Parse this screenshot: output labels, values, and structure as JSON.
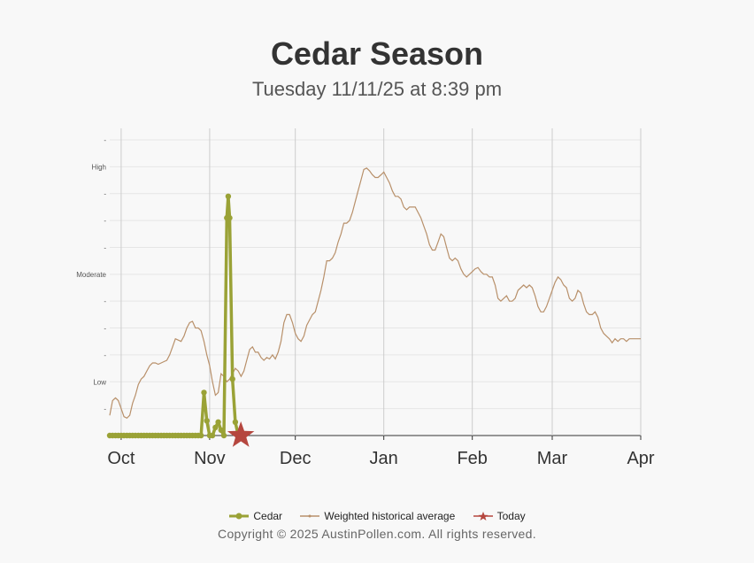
{
  "chart_data": {
    "type": "line",
    "title": "Cedar Season",
    "subtitle": "Tuesday 11/11/25 at 8:39 pm",
    "x_axis": {
      "type": "date",
      "range": [
        "2025-09-27",
        "2026-04-01"
      ],
      "tick_labels": [
        {
          "label": "Oct",
          "date": "2025-10-01"
        },
        {
          "label": "Nov",
          "date": "2025-11-01"
        },
        {
          "label": "Dec",
          "date": "2025-12-01"
        },
        {
          "label": "Jan",
          "date": "2026-01-01"
        },
        {
          "label": "Feb",
          "date": "2026-02-01"
        },
        {
          "label": "Mar",
          "date": "2026-03-01"
        },
        {
          "label": "Apr",
          "date": "2026-04-01"
        }
      ]
    },
    "y_axis": {
      "range": [
        0,
        11
      ],
      "tick_labels": [
        {
          "value": 1,
          "label": "-"
        },
        {
          "value": 2,
          "label": "Low"
        },
        {
          "value": 3,
          "label": "-"
        },
        {
          "value": 4,
          "label": "-"
        },
        {
          "value": 5,
          "label": "-"
        },
        {
          "value": 6,
          "label": "Moderate"
        },
        {
          "value": 7,
          "label": "-"
        },
        {
          "value": 8,
          "label": "-"
        },
        {
          "value": 9,
          "label": "-"
        },
        {
          "value": 10,
          "label": "High"
        },
        {
          "value": 11,
          "label": "-"
        }
      ]
    },
    "grid": true,
    "legend_position": "bottom",
    "series": [
      {
        "name": "Cedar",
        "color": "#9aa236",
        "points": [
          [
            "2025-09-27",
            0
          ],
          [
            "2025-10-05",
            0
          ],
          [
            "2025-10-15",
            0
          ],
          [
            "2025-10-25",
            0
          ],
          [
            "2025-10-29",
            0
          ],
          [
            "2025-10-30",
            1.6
          ],
          [
            "2025-10-31",
            0.55
          ],
          [
            "2025-11-01",
            0
          ],
          [
            "2025-11-02",
            0
          ],
          [
            "2025-11-03",
            0.3
          ],
          [
            "2025-11-04",
            0.5
          ],
          [
            "2025-11-05",
            0.2
          ],
          [
            "2025-11-06",
            0
          ],
          [
            "2025-11-07",
            8.1
          ],
          [
            "2025-11-07T12:00",
            8.9
          ],
          [
            "2025-11-08",
            8.1
          ],
          [
            "2025-11-09",
            2.1
          ],
          [
            "2025-11-10",
            0.5
          ],
          [
            "2025-11-11",
            0
          ]
        ]
      },
      {
        "name": "Weighted historical average",
        "color": "#b8906a",
        "points": [
          [
            "2025-09-27",
            0.75
          ],
          [
            "2025-09-28",
            1.3
          ],
          [
            "2025-09-29",
            1.4
          ],
          [
            "2025-09-30",
            1.3
          ],
          [
            "2025-10-01",
            1.0
          ],
          [
            "2025-10-02",
            0.7
          ],
          [
            "2025-10-03",
            0.65
          ],
          [
            "2025-10-04",
            0.75
          ],
          [
            "2025-10-05",
            1.2
          ],
          [
            "2025-10-06",
            1.5
          ],
          [
            "2025-10-07",
            1.9
          ],
          [
            "2025-10-08",
            2.1
          ],
          [
            "2025-10-09",
            2.2
          ],
          [
            "2025-10-10",
            2.4
          ],
          [
            "2025-10-11",
            2.6
          ],
          [
            "2025-10-12",
            2.7
          ],
          [
            "2025-10-13",
            2.7
          ],
          [
            "2025-10-14",
            2.65
          ],
          [
            "2025-10-15",
            2.7
          ],
          [
            "2025-10-16",
            2.75
          ],
          [
            "2025-10-17",
            2.8
          ],
          [
            "2025-10-18",
            3.0
          ],
          [
            "2025-10-19",
            3.3
          ],
          [
            "2025-10-20",
            3.6
          ],
          [
            "2025-10-21",
            3.55
          ],
          [
            "2025-10-22",
            3.5
          ],
          [
            "2025-10-23",
            3.7
          ],
          [
            "2025-10-24",
            4.0
          ],
          [
            "2025-10-25",
            4.2
          ],
          [
            "2025-10-26",
            4.25
          ],
          [
            "2025-10-27",
            4.0
          ],
          [
            "2025-10-28",
            4.0
          ],
          [
            "2025-10-29",
            3.9
          ],
          [
            "2025-10-30",
            3.5
          ],
          [
            "2025-10-31",
            3.0
          ],
          [
            "2025-11-01",
            2.6
          ],
          [
            "2025-11-02",
            2.0
          ],
          [
            "2025-11-03",
            1.5
          ],
          [
            "2025-11-04",
            1.6
          ],
          [
            "2025-11-05",
            2.3
          ],
          [
            "2025-11-06",
            2.2
          ],
          [
            "2025-11-07",
            2.0
          ],
          [
            "2025-11-08",
            2.1
          ],
          [
            "2025-11-09",
            2.3
          ],
          [
            "2025-11-10",
            2.5
          ],
          [
            "2025-11-11",
            2.4
          ],
          [
            "2025-11-12",
            2.2
          ],
          [
            "2025-11-13",
            2.4
          ],
          [
            "2025-11-14",
            2.8
          ],
          [
            "2025-11-15",
            3.2
          ],
          [
            "2025-11-16",
            3.3
          ],
          [
            "2025-11-17",
            3.1
          ],
          [
            "2025-11-18",
            3.1
          ],
          [
            "2025-11-19",
            2.9
          ],
          [
            "2025-11-20",
            2.8
          ],
          [
            "2025-11-21",
            2.9
          ],
          [
            "2025-11-22",
            2.85
          ],
          [
            "2025-11-23",
            3.0
          ],
          [
            "2025-11-24",
            2.85
          ],
          [
            "2025-11-25",
            3.1
          ],
          [
            "2025-11-26",
            3.5
          ],
          [
            "2025-11-27",
            4.2
          ],
          [
            "2025-11-28",
            4.5
          ],
          [
            "2025-11-29",
            4.5
          ],
          [
            "2025-11-30",
            4.2
          ],
          [
            "2025-12-01",
            3.8
          ],
          [
            "2025-12-02",
            3.6
          ],
          [
            "2025-12-03",
            3.5
          ],
          [
            "2025-12-04",
            3.7
          ],
          [
            "2025-12-05",
            4.1
          ],
          [
            "2025-12-06",
            4.3
          ],
          [
            "2025-12-07",
            4.5
          ],
          [
            "2025-12-08",
            4.6
          ],
          [
            "2025-12-09",
            5.0
          ],
          [
            "2025-12-10",
            5.4
          ],
          [
            "2025-12-11",
            5.9
          ],
          [
            "2025-12-12",
            6.5
          ],
          [
            "2025-12-13",
            6.5
          ],
          [
            "2025-12-14",
            6.6
          ],
          [
            "2025-12-15",
            6.8
          ],
          [
            "2025-12-16",
            7.2
          ],
          [
            "2025-12-17",
            7.5
          ],
          [
            "2025-12-18",
            7.9
          ],
          [
            "2025-12-19",
            7.9
          ],
          [
            "2025-12-20",
            8.0
          ],
          [
            "2025-12-21",
            8.3
          ],
          [
            "2025-12-22",
            8.7
          ],
          [
            "2025-12-23",
            9.1
          ],
          [
            "2025-12-24",
            9.5
          ],
          [
            "2025-12-25",
            9.9
          ],
          [
            "2025-12-26",
            9.95
          ],
          [
            "2025-12-27",
            9.85
          ],
          [
            "2025-12-28",
            9.7
          ],
          [
            "2025-12-29",
            9.6
          ],
          [
            "2025-12-30",
            9.6
          ],
          [
            "2025-12-31",
            9.7
          ],
          [
            "2026-01-01",
            9.8
          ],
          [
            "2026-01-02",
            9.6
          ],
          [
            "2026-01-03",
            9.4
          ],
          [
            "2026-01-04",
            9.1
          ],
          [
            "2026-01-05",
            8.9
          ],
          [
            "2026-01-06",
            8.9
          ],
          [
            "2026-01-07",
            8.8
          ],
          [
            "2026-01-08",
            8.5
          ],
          [
            "2026-01-09",
            8.4
          ],
          [
            "2026-01-10",
            8.5
          ],
          [
            "2026-01-11",
            8.5
          ],
          [
            "2026-01-12",
            8.5
          ],
          [
            "2026-01-13",
            8.3
          ],
          [
            "2026-01-14",
            8.1
          ],
          [
            "2026-01-15",
            7.8
          ],
          [
            "2026-01-16",
            7.5
          ],
          [
            "2026-01-17",
            7.1
          ],
          [
            "2026-01-18",
            6.9
          ],
          [
            "2026-01-19",
            6.9
          ],
          [
            "2026-01-20",
            7.2
          ],
          [
            "2026-01-21",
            7.5
          ],
          [
            "2026-01-22",
            7.4
          ],
          [
            "2026-01-23",
            7.0
          ],
          [
            "2026-01-24",
            6.6
          ],
          [
            "2026-01-25",
            6.5
          ],
          [
            "2026-01-26",
            6.6
          ],
          [
            "2026-01-27",
            6.5
          ],
          [
            "2026-01-28",
            6.2
          ],
          [
            "2026-01-29",
            6.0
          ],
          [
            "2026-01-30",
            5.9
          ],
          [
            "2026-01-31",
            6.0
          ],
          [
            "2026-02-01",
            6.1
          ],
          [
            "2026-02-02",
            6.2
          ],
          [
            "2026-02-03",
            6.25
          ],
          [
            "2026-02-04",
            6.1
          ],
          [
            "2026-02-05",
            6.0
          ],
          [
            "2026-02-06",
            6.0
          ],
          [
            "2026-02-07",
            5.9
          ],
          [
            "2026-02-08",
            5.9
          ],
          [
            "2026-02-09",
            5.6
          ],
          [
            "2026-02-10",
            5.1
          ],
          [
            "2026-02-11",
            5.0
          ],
          [
            "2026-02-12",
            5.1
          ],
          [
            "2026-02-13",
            5.2
          ],
          [
            "2026-02-14",
            5.0
          ],
          [
            "2026-02-15",
            5.0
          ],
          [
            "2026-02-16",
            5.1
          ],
          [
            "2026-02-17",
            5.4
          ],
          [
            "2026-02-18",
            5.5
          ],
          [
            "2026-02-19",
            5.6
          ],
          [
            "2026-02-20",
            5.5
          ],
          [
            "2026-02-21",
            5.6
          ],
          [
            "2026-02-22",
            5.5
          ],
          [
            "2026-02-23",
            5.2
          ],
          [
            "2026-02-24",
            4.8
          ],
          [
            "2026-02-25",
            4.6
          ],
          [
            "2026-02-26",
            4.6
          ],
          [
            "2026-02-27",
            4.8
          ],
          [
            "2026-02-28",
            5.1
          ],
          [
            "2026-03-01",
            5.4
          ],
          [
            "2026-03-02",
            5.7
          ],
          [
            "2026-03-03",
            5.9
          ],
          [
            "2026-03-04",
            5.8
          ],
          [
            "2026-03-05",
            5.6
          ],
          [
            "2026-03-06",
            5.5
          ],
          [
            "2026-03-07",
            5.1
          ],
          [
            "2026-03-08",
            5.0
          ],
          [
            "2026-03-09",
            5.1
          ],
          [
            "2026-03-10",
            5.4
          ],
          [
            "2026-03-11",
            5.3
          ],
          [
            "2026-03-12",
            4.9
          ],
          [
            "2026-03-13",
            4.6
          ],
          [
            "2026-03-14",
            4.5
          ],
          [
            "2026-03-15",
            4.5
          ],
          [
            "2026-03-16",
            4.6
          ],
          [
            "2026-03-17",
            4.4
          ],
          [
            "2026-03-18",
            4.0
          ],
          [
            "2026-03-19",
            3.8
          ],
          [
            "2026-03-20",
            3.7
          ],
          [
            "2026-03-21",
            3.6
          ],
          [
            "2026-03-22",
            3.45
          ],
          [
            "2026-03-23",
            3.6
          ],
          [
            "2026-03-24",
            3.5
          ],
          [
            "2026-03-25",
            3.6
          ],
          [
            "2026-03-26",
            3.6
          ],
          [
            "2026-03-27",
            3.5
          ],
          [
            "2026-03-28",
            3.6
          ],
          [
            "2026-03-29",
            3.6
          ],
          [
            "2026-03-30",
            3.6
          ],
          [
            "2026-03-31",
            3.6
          ],
          [
            "2026-04-01",
            3.6
          ]
        ]
      },
      {
        "name": "Today",
        "color": "#b5473f",
        "points": [
          [
            "2025-11-11",
            0
          ]
        ]
      }
    ]
  },
  "legend": {
    "cedar_label": "Cedar",
    "historical_label": "Weighted historical average",
    "today_label": "Today"
  },
  "footer": {
    "copyright": "Copyright © 2025 AustinPollen.com.  All rights reserved."
  }
}
